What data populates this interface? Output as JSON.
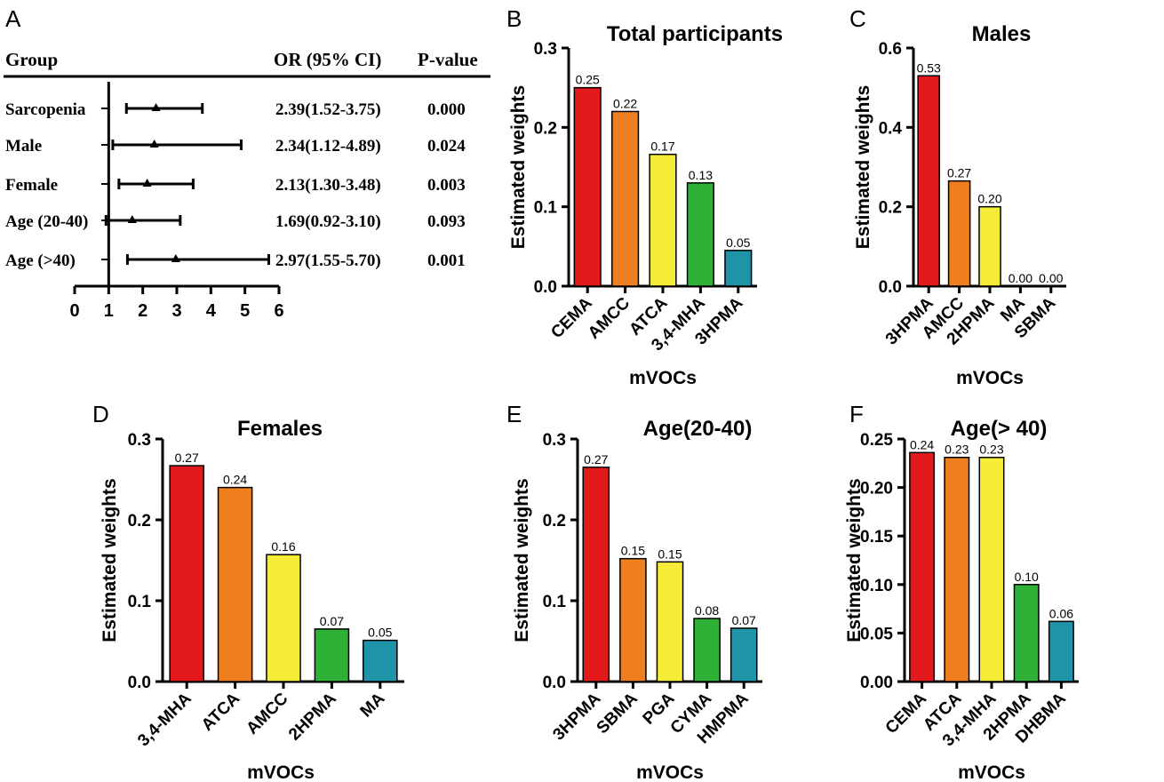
{
  "colors": {
    "red": "#e4191c",
    "orange": "#f0801f",
    "yellow": "#f4ec37",
    "green": "#2eb136",
    "teal": "#1f93a8",
    "ink": "#000000"
  },
  "chart_data": [
    {
      "id": "A",
      "panel_label": "A",
      "type": "forest",
      "header": {
        "group": "Group",
        "or": "OR (95% CI)",
        "p": "P-value"
      },
      "xlim": [
        0,
        6
      ],
      "xticks": [
        "0",
        "1",
        "2",
        "3",
        "4",
        "5",
        "6"
      ],
      "reference": 1,
      "rows": [
        {
          "label": "Sarcopenia",
          "or": 2.39,
          "lo": 1.52,
          "hi": 3.75,
          "or_text": "2.39(1.52-3.75)",
          "p": "0.000"
        },
        {
          "label": "Male",
          "or": 2.34,
          "lo": 1.12,
          "hi": 4.89,
          "or_text": "2.34(1.12-4.89)",
          "p": "0.024"
        },
        {
          "label": "Female",
          "or": 2.13,
          "lo": 1.3,
          "hi": 3.48,
          "or_text": "2.13(1.30-3.48)",
          "p": "0.003"
        },
        {
          "label": "Age (20-40)",
          "or": 1.69,
          "lo": 0.92,
          "hi": 3.1,
          "or_text": "1.69(0.92-3.10)",
          "p": "0.093"
        },
        {
          "label": "Age (>40)",
          "or": 2.97,
          "lo": 1.55,
          "hi": 5.7,
          "or_text": "2.97(1.55-5.70)",
          "p": "0.001"
        }
      ]
    },
    {
      "id": "B",
      "panel_label": "B",
      "type": "bar",
      "title": "Total participants",
      "xlabel": "mVOCs",
      "ylabel": "Estimated weights",
      "ylim": [
        0,
        0.3
      ],
      "yticks": [
        "0.0",
        "0.1",
        "0.2",
        "0.3"
      ],
      "categories": [
        "CEMA",
        "AMCC",
        "ATCA",
        "3,4-MHA",
        "3HPMA"
      ],
      "values": [
        0.25,
        0.22,
        0.166,
        0.13,
        0.045
      ],
      "labels": [
        "0.25",
        "0.22",
        "0.17",
        "0.13",
        "0.05"
      ]
    },
    {
      "id": "C",
      "panel_label": "C",
      "type": "bar",
      "title": "Males",
      "xlabel": "mVOCs",
      "ylabel": "Estimated weights",
      "ylim": [
        0,
        0.6
      ],
      "yticks": [
        "0.0",
        "0.2",
        "0.4",
        "0.6"
      ],
      "categories": [
        "3HPMA",
        "AMCC",
        "2HPMA",
        "MA",
        "SBMA"
      ],
      "values": [
        0.53,
        0.265,
        0.2,
        0,
        0
      ],
      "labels": [
        "0.53",
        "0.27",
        "0.20",
        "0.00",
        "0.00"
      ]
    },
    {
      "id": "D",
      "panel_label": "D",
      "type": "bar",
      "title": "Females",
      "xlabel": "mVOCs",
      "ylabel": "Estimated weights",
      "ylim": [
        0,
        0.3
      ],
      "yticks": [
        "0.0",
        "0.1",
        "0.2",
        "0.3"
      ],
      "categories": [
        "3,4-MHA",
        "ATCA",
        "AMCC",
        "2HPMA",
        "MA"
      ],
      "values": [
        0.267,
        0.24,
        0.157,
        0.065,
        0.051
      ],
      "labels": [
        "0.27",
        "0.24",
        "0.16",
        "0.07",
        "0.05"
      ]
    },
    {
      "id": "E",
      "panel_label": "E",
      "type": "bar",
      "title": "Age(20-40)",
      "xlabel": "mVOCs",
      "ylabel": "Estimated weights",
      "ylim": [
        0,
        0.3
      ],
      "yticks": [
        "0.0",
        "0.1",
        "0.2",
        "0.3"
      ],
      "categories": [
        "3HPMA",
        "SBMA",
        "PGA",
        "CYMA",
        "HMPMA"
      ],
      "values": [
        0.265,
        0.152,
        0.148,
        0.078,
        0.066
      ],
      "labels": [
        "0.27",
        "0.15",
        "0.15",
        "0.08",
        "0.07"
      ]
    },
    {
      "id": "F",
      "panel_label": "F",
      "type": "bar",
      "title": "Age(> 40)",
      "xlabel": "mVOCs",
      "ylabel": "Estimated weights",
      "ylim": [
        0,
        0.25
      ],
      "yticks": [
        "0.00",
        "0.05",
        "0.10",
        "0.15",
        "0.20",
        "0.25"
      ],
      "categories": [
        "CEMA",
        "ATCA",
        "3,4-MHA",
        "2HPMA",
        "DHBMA"
      ],
      "values": [
        0.236,
        0.231,
        0.231,
        0.1,
        0.062
      ],
      "labels": [
        "0.24",
        "0.23",
        "0.23",
        "0.10",
        "0.06"
      ]
    }
  ]
}
